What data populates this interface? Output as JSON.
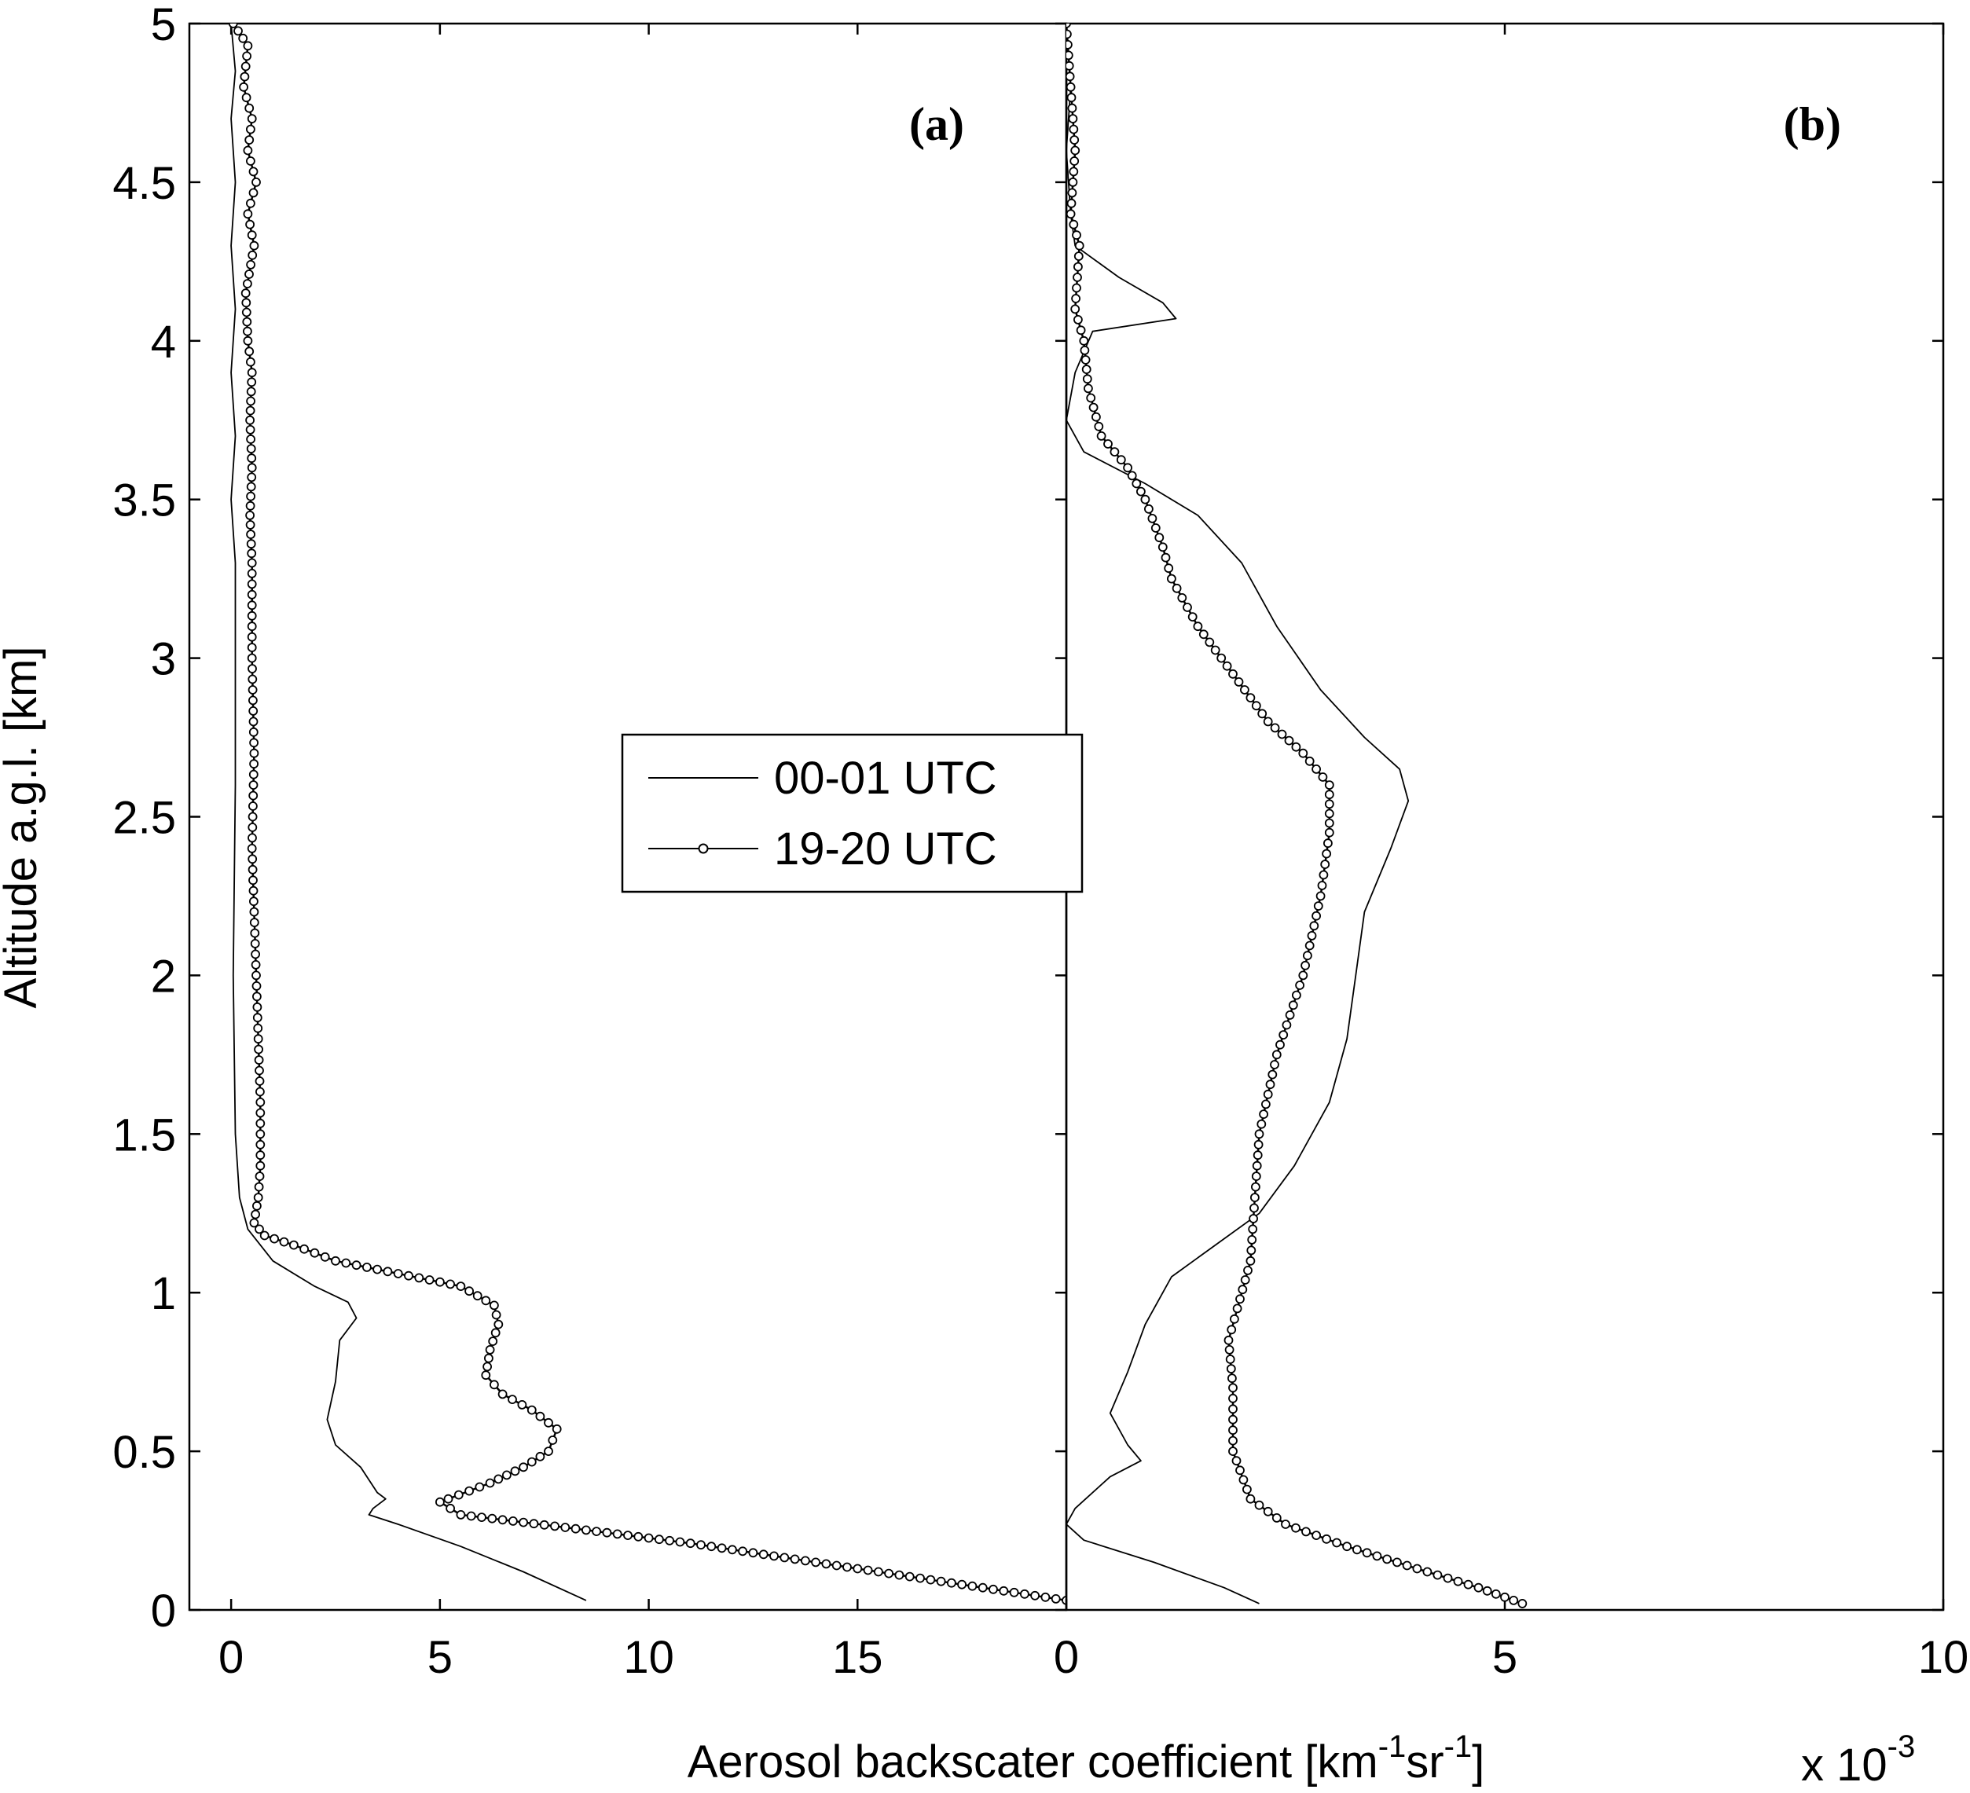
{
  "chart_data": {
    "type": "line",
    "xlabel_parts": [
      "Aerosol backscater coefficient [km",
      "-1",
      "sr",
      "-1",
      "]"
    ],
    "xlabel_multiplier": "x 10",
    "xlabel_multiplier_exp": "-3",
    "ylabel": "Altitude a.g.l. [km]",
    "ylim": [
      0,
      5
    ],
    "yticks": [
      "0",
      "0.5",
      "1",
      "1.5",
      "2",
      "2.5",
      "3",
      "3.5",
      "4",
      "4.5",
      "5"
    ],
    "legend": {
      "placement": "center-left",
      "entries": [
        "00-01 UTC",
        "19-20 UTC"
      ]
    },
    "panels": [
      {
        "label": "(a)",
        "xlim": [
          -1,
          20
        ],
        "xticks": [
          "0",
          "5",
          "10",
          "15"
        ],
        "series": [
          {
            "name": "00-01 UTC",
            "marker": "none",
            "points": [
              [
                0.0,
                5.0
              ],
              [
                0.1,
                4.85
              ],
              [
                0.0,
                4.7
              ],
              [
                0.1,
                4.5
              ],
              [
                0.0,
                4.3
              ],
              [
                0.1,
                4.1
              ],
              [
                0.0,
                3.9
              ],
              [
                0.1,
                3.7
              ],
              [
                0.0,
                3.5
              ],
              [
                0.1,
                3.3
              ],
              [
                0.1,
                3.0
              ],
              [
                0.1,
                2.6
              ],
              [
                0.05,
                2.0
              ],
              [
                0.1,
                1.5
              ],
              [
                0.2,
                1.3
              ],
              [
                0.4,
                1.2
              ],
              [
                1.0,
                1.1
              ],
              [
                2.0,
                1.02
              ],
              [
                2.8,
                0.97
              ],
              [
                3.0,
                0.92
              ],
              [
                2.6,
                0.85
              ],
              [
                2.5,
                0.72
              ],
              [
                2.3,
                0.6
              ],
              [
                2.5,
                0.52
              ],
              [
                3.1,
                0.45
              ],
              [
                3.5,
                0.37
              ],
              [
                3.7,
                0.35
              ],
              [
                3.4,
                0.32
              ],
              [
                3.3,
                0.3
              ],
              [
                4.0,
                0.27
              ],
              [
                5.5,
                0.2
              ],
              [
                7.0,
                0.12
              ],
              [
                8.5,
                0.03
              ]
            ]
          },
          {
            "name": "19-20 UTC",
            "marker": "circle",
            "points": [
              [
                0.05,
                5.0
              ],
              [
                0.4,
                4.93
              ],
              [
                0.3,
                4.8
              ],
              [
                0.5,
                4.7
              ],
              [
                0.4,
                4.6
              ],
              [
                0.6,
                4.5
              ],
              [
                0.4,
                4.4
              ],
              [
                0.55,
                4.3
              ],
              [
                0.35,
                4.15
              ],
              [
                0.4,
                4.0
              ],
              [
                0.5,
                3.9
              ],
              [
                0.45,
                3.75
              ],
              [
                0.5,
                3.6
              ],
              [
                0.45,
                3.45
              ],
              [
                0.5,
                3.3
              ],
              [
                0.5,
                3.0
              ],
              [
                0.55,
                2.7
              ],
              [
                0.5,
                2.4
              ],
              [
                0.55,
                2.2
              ],
              [
                0.6,
                2.0
              ],
              [
                0.65,
                1.8
              ],
              [
                0.7,
                1.6
              ],
              [
                0.7,
                1.4
              ],
              [
                0.65,
                1.3
              ],
              [
                0.55,
                1.22
              ],
              [
                0.8,
                1.18
              ],
              [
                1.5,
                1.15
              ],
              [
                2.5,
                1.1
              ],
              [
                4.0,
                1.06
              ],
              [
                5.5,
                1.02
              ],
              [
                6.3,
                0.96
              ],
              [
                6.4,
                0.9
              ],
              [
                6.2,
                0.82
              ],
              [
                6.1,
                0.74
              ],
              [
                6.5,
                0.68
              ],
              [
                7.2,
                0.63
              ],
              [
                7.8,
                0.57
              ],
              [
                7.6,
                0.5
              ],
              [
                7.0,
                0.45
              ],
              [
                6.2,
                0.4
              ],
              [
                5.2,
                0.35
              ],
              [
                5.0,
                0.34
              ],
              [
                5.5,
                0.3
              ],
              [
                8.0,
                0.26
              ],
              [
                11.0,
                0.21
              ],
              [
                14.0,
                0.15
              ],
              [
                17.0,
                0.09
              ],
              [
                19.0,
                0.05
              ],
              [
                20.0,
                0.03
              ]
            ]
          }
        ]
      },
      {
        "label": "(b)",
        "xlim": [
          0,
          10
        ],
        "xticks": [
          "0",
          "5",
          "10"
        ],
        "series": [
          {
            "name": "00-01 UTC",
            "marker": "none",
            "points": [
              [
                0.0,
                5.0
              ],
              [
                0.05,
                4.8
              ],
              [
                0.0,
                4.6
              ],
              [
                0.05,
                4.4
              ],
              [
                0.1,
                4.3
              ],
              [
                0.6,
                4.2
              ],
              [
                1.1,
                4.12
              ],
              [
                1.25,
                4.07
              ],
              [
                0.3,
                4.03
              ],
              [
                0.1,
                3.9
              ],
              [
                0.0,
                3.75
              ],
              [
                0.2,
                3.65
              ],
              [
                0.9,
                3.55
              ],
              [
                1.5,
                3.45
              ],
              [
                2.0,
                3.3
              ],
              [
                2.4,
                3.1
              ],
              [
                2.9,
                2.9
              ],
              [
                3.4,
                2.75
              ],
              [
                3.8,
                2.65
              ],
              [
                3.9,
                2.55
              ],
              [
                3.7,
                2.4
              ],
              [
                3.4,
                2.2
              ],
              [
                3.3,
                2.0
              ],
              [
                3.2,
                1.8
              ],
              [
                3.0,
                1.6
              ],
              [
                2.6,
                1.4
              ],
              [
                2.2,
                1.25
              ],
              [
                1.7,
                1.15
              ],
              [
                1.2,
                1.05
              ],
              [
                0.9,
                0.9
              ],
              [
                0.7,
                0.75
              ],
              [
                0.5,
                0.62
              ],
              [
                0.7,
                0.52
              ],
              [
                0.85,
                0.47
              ],
              [
                0.5,
                0.42
              ],
              [
                0.1,
                0.32
              ],
              [
                0.0,
                0.27
              ],
              [
                0.2,
                0.22
              ],
              [
                1.0,
                0.15
              ],
              [
                1.8,
                0.07
              ],
              [
                2.2,
                0.02
              ]
            ]
          },
          {
            "name": "19-20 UTC",
            "marker": "circle",
            "points": [
              [
                0.0,
                5.0
              ],
              [
                0.05,
                4.8
              ],
              [
                0.1,
                4.6
              ],
              [
                0.05,
                4.4
              ],
              [
                0.15,
                4.3
              ],
              [
                0.1,
                4.1
              ],
              [
                0.2,
                4.0
              ],
              [
                0.25,
                3.85
              ],
              [
                0.4,
                3.7
              ],
              [
                0.7,
                3.6
              ],
              [
                0.9,
                3.5
              ],
              [
                1.1,
                3.35
              ],
              [
                1.2,
                3.25
              ],
              [
                1.5,
                3.1
              ],
              [
                1.9,
                2.95
              ],
              [
                2.3,
                2.8
              ],
              [
                2.7,
                2.7
              ],
              [
                3.0,
                2.6
              ],
              [
                3.0,
                2.45
              ],
              [
                2.9,
                2.25
              ],
              [
                2.7,
                2.0
              ],
              [
                2.4,
                1.75
              ],
              [
                2.2,
                1.5
              ],
              [
                2.15,
                1.3
              ],
              [
                2.1,
                1.1
              ],
              [
                1.95,
                0.95
              ],
              [
                1.85,
                0.85
              ],
              [
                1.9,
                0.7
              ],
              [
                1.9,
                0.5
              ],
              [
                2.1,
                0.35
              ],
              [
                2.5,
                0.27
              ],
              [
                3.2,
                0.2
              ],
              [
                4.0,
                0.13
              ],
              [
                4.7,
                0.07
              ],
              [
                5.2,
                0.02
              ]
            ]
          }
        ]
      }
    ]
  }
}
